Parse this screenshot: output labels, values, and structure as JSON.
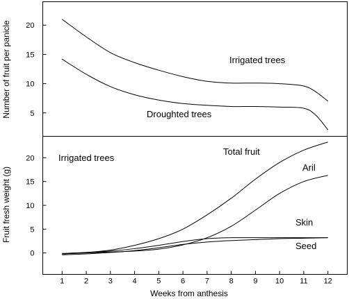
{
  "chart_data": [
    {
      "type": "line",
      "ylabel": "Number of fruit per panicle",
      "xlabel": "",
      "xlim": [
        0.2,
        12.8
      ],
      "ylim": [
        1,
        24
      ],
      "yticks": [
        5,
        10,
        15,
        20
      ],
      "grid": false,
      "annotations": [
        "Irrigated trees",
        "Droughted trees"
      ],
      "series": [
        {
          "name": "Irrigated trees",
          "x": [
            1,
            2,
            3,
            4,
            5,
            6,
            7,
            8,
            9,
            10,
            11,
            11.5,
            12
          ],
          "values": [
            21,
            18,
            15.3,
            13.6,
            12.3,
            11.2,
            10.4,
            10.1,
            10.1,
            10,
            9.6,
            8.6,
            7
          ]
        },
        {
          "name": "Droughted trees",
          "x": [
            1,
            2,
            3,
            4,
            5,
            6,
            7,
            8,
            9,
            10,
            11,
            11.5,
            12
          ],
          "values": [
            14.2,
            11.6,
            9.5,
            8.1,
            7.2,
            6.6,
            6.3,
            6.1,
            6.1,
            6,
            5.8,
            4.6,
            2.1
          ]
        }
      ]
    },
    {
      "type": "line",
      "ylabel": "Fruit fresh weight (g)",
      "xlabel": "Weeks from anthesis",
      "xlim": [
        0.2,
        12.8
      ],
      "ylim": [
        -4.5,
        24.5
      ],
      "xticks": [
        1,
        2,
        3,
        4,
        5,
        6,
        7,
        8,
        9,
        10,
        11,
        12
      ],
      "yticks": [
        0,
        5,
        10,
        15,
        20
      ],
      "grid": false,
      "annotations": [
        "Irrigated trees"
      ],
      "series": [
        {
          "name": "Total fruit",
          "x": [
            1,
            2,
            3,
            4,
            5,
            6,
            7,
            8,
            9,
            10,
            11,
            12
          ],
          "values": [
            -0.2,
            0.1,
            0.6,
            1.6,
            3,
            5,
            8,
            11.5,
            15.5,
            19,
            21.6,
            23.3
          ]
        },
        {
          "name": "Aril",
          "x": [
            1,
            2,
            3,
            4,
            5,
            6,
            7,
            8,
            9,
            10,
            11,
            12
          ],
          "values": [
            -0.2,
            0,
            0.2,
            0.4,
            0.8,
            1.7,
            3.2,
            5.6,
            9,
            12.5,
            15,
            16.3
          ]
        },
        {
          "name": "Skin",
          "x": [
            1,
            2,
            3,
            4,
            5,
            6,
            7,
            8,
            9,
            10,
            11,
            12
          ],
          "values": [
            -0.1,
            0.1,
            0.4,
            0.9,
            1.6,
            2.4,
            3,
            3.2,
            3.2,
            3.2,
            3.2,
            3.2
          ]
        },
        {
          "name": "Seed",
          "x": [
            1,
            2,
            3,
            4,
            5,
            6,
            7,
            8,
            9,
            10,
            11,
            12
          ],
          "values": [
            -0.4,
            -0.2,
            0.1,
            0.5,
            1.1,
            1.8,
            2.3,
            2.6,
            2.8,
            3,
            3.1,
            3.2
          ]
        }
      ]
    }
  ],
  "labels": {
    "top_irrigated": "Irrigated trees",
    "top_droughted": "Droughted trees",
    "bottom_irrigated": "Irrigated trees",
    "total_fruit": "Total fruit",
    "aril": "Aril",
    "skin": "Skin",
    "seed": "Seed"
  }
}
